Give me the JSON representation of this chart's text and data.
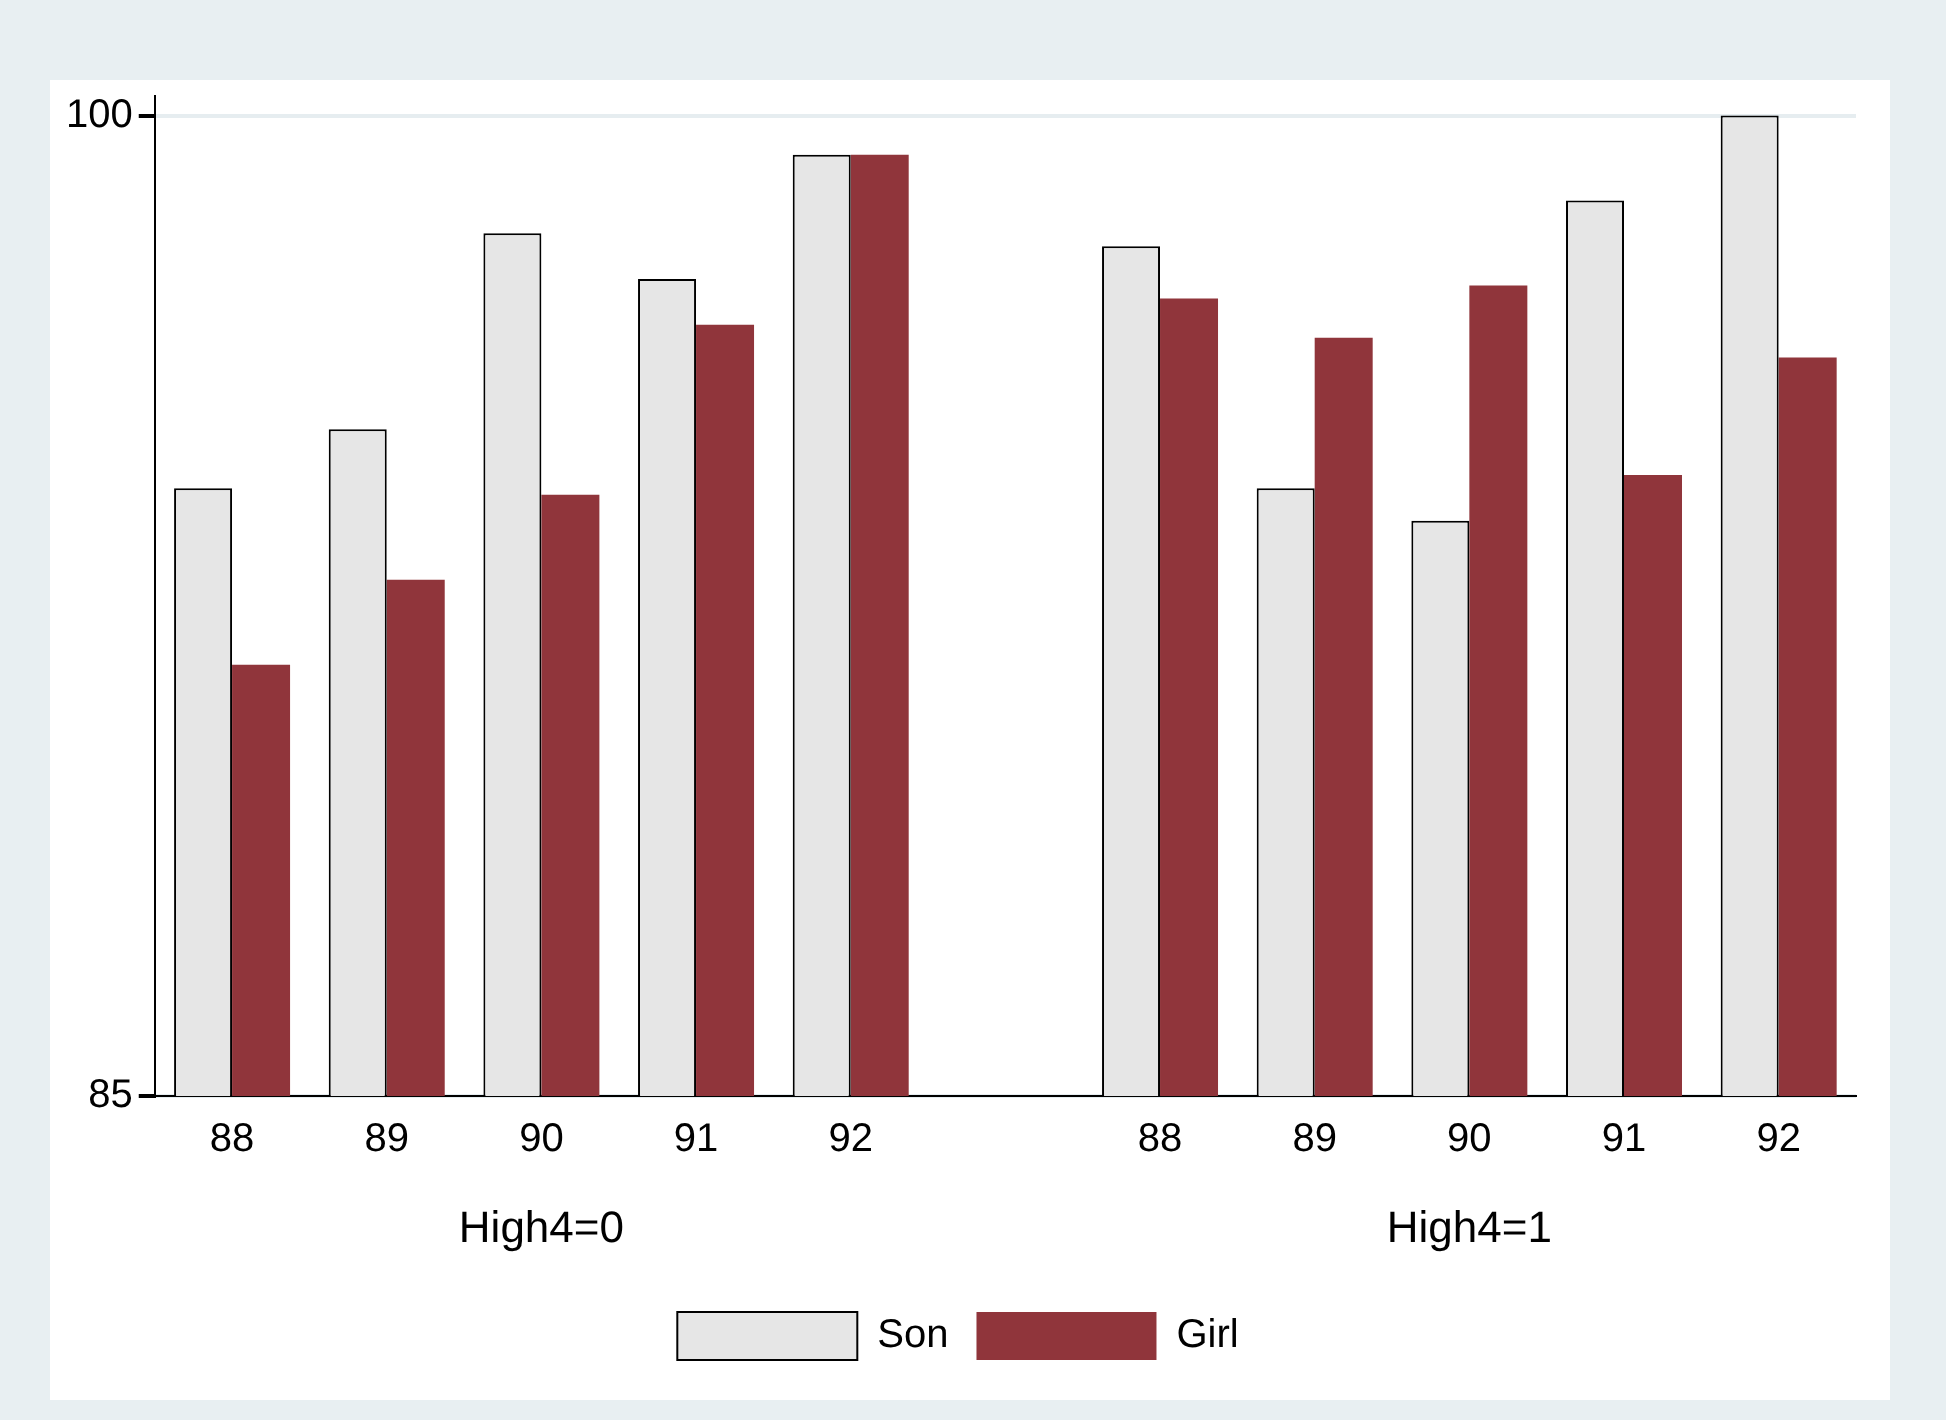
{
  "chart_data": {
    "type": "bar",
    "categories": [
      "88",
      "89",
      "90",
      "91",
      "92",
      null,
      "88",
      "89",
      "90",
      "91",
      "92"
    ],
    "series": [
      {
        "name": "Son",
        "color": "#e6e6e6",
        "values": [
          94.3,
          95.2,
          98.2,
          97.5,
          99.4,
          null,
          98.0,
          94.3,
          93.8,
          98.7,
          100.0
        ]
      },
      {
        "name": "Girl",
        "color": "#90353b",
        "values": [
          91.6,
          92.9,
          94.2,
          96.8,
          99.4,
          null,
          97.2,
          96.6,
          97.4,
          94.5,
          96.3
        ]
      }
    ],
    "annotations": [
      "High4=0",
      "High4=1"
    ],
    "ylim": [
      85,
      100.3
    ],
    "yticks": [
      85,
      100
    ],
    "grid": "y",
    "legend": "bottom"
  }
}
